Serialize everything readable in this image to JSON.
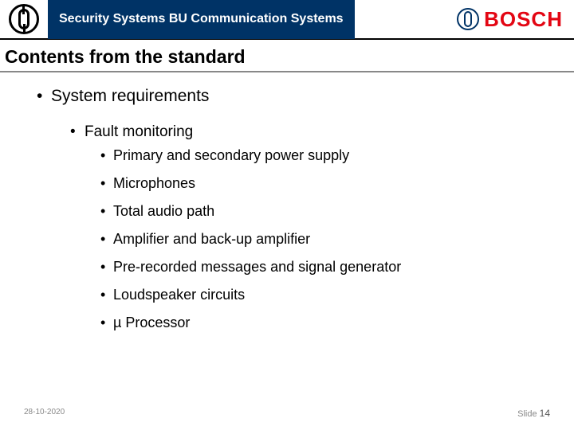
{
  "header": {
    "title": "Security Systems BU Communication Systems",
    "logo_text": "BOSCH"
  },
  "slide_title": "Contents from the standard",
  "bullets": {
    "level1": "System requirements",
    "level2": "Fault monitoring",
    "level3": {
      "item1": "Primary and secondary power supply",
      "item2": "Microphones",
      "item3": "Total audio path",
      "item4": "Amplifier and back-up amplifier",
      "item5": "Pre-recorded messages and signal generator",
      "item6": "Loudspeaker circuits",
      "item7": "µ Processor"
    }
  },
  "footer": {
    "date": "28-10-2020",
    "slide_label": "Slide ",
    "slide_number": "14"
  },
  "colors": {
    "header_bg": "#003366",
    "logo_red": "#e30613",
    "title_black": "#000000",
    "footer_gray": "#888888"
  }
}
